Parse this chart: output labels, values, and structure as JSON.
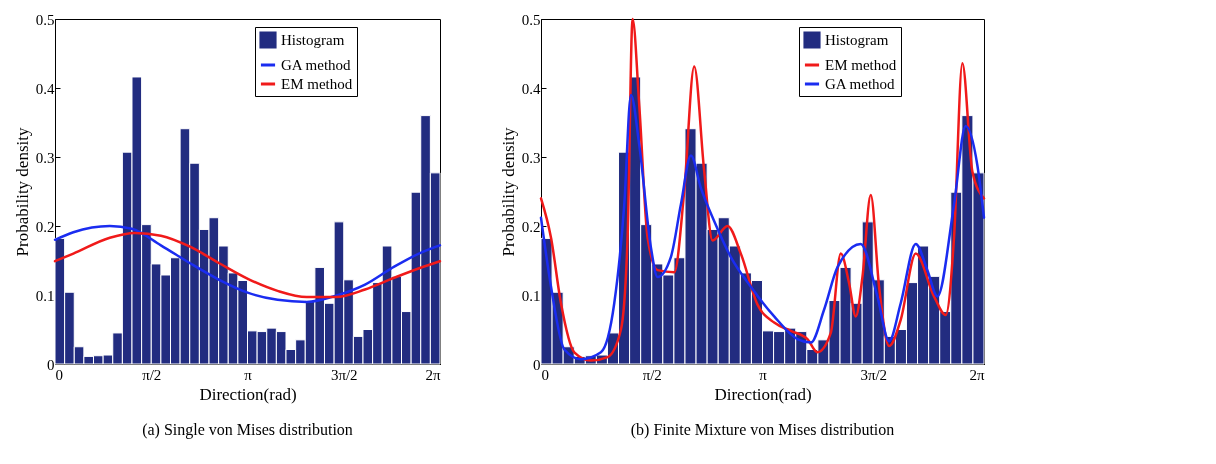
{
  "chart_data": [
    {
      "type": "histogram",
      "xlabel": "Direction(rad)",
      "ylabel": "Probability density",
      "annotations": [
        "(a) Single von Mises distribution"
      ],
      "xlim": [
        0,
        6.2832
      ],
      "ylim": [
        0,
        0.5
      ],
      "xticks": [
        {
          "value": 0,
          "label": "0"
        },
        {
          "value": 1.5708,
          "label": "π/2"
        },
        {
          "value": 3.1416,
          "label": "π"
        },
        {
          "value": 4.7124,
          "label": "3π/2"
        },
        {
          "value": 6.2832,
          "label": "2π"
        }
      ],
      "yticks": [
        0,
        0.1,
        0.2,
        0.3,
        0.4,
        0.5
      ],
      "legend": "top right",
      "bins": [
        0,
        0.1571,
        0.3142,
        0.4712,
        0.6283,
        0.7854,
        0.9425,
        1.0996,
        1.2566,
        1.4137,
        1.5708,
        1.7279,
        1.885,
        2.042,
        2.1991,
        2.3562,
        2.5133,
        2.6704,
        2.8274,
        2.9845,
        3.1416,
        3.2987,
        3.4558,
        3.6128,
        3.7699,
        3.927,
        4.0841,
        4.2412,
        4.3982,
        4.5553,
        4.7124,
        4.8695,
        5.0265,
        5.1836,
        5.3407,
        5.4978,
        5.6549,
        5.8119,
        5.969,
        6.1261,
        6.2832
      ],
      "series": [
        {
          "name": "Histogram",
          "type": "histogram",
          "color": "#222c80",
          "values": [
            0.182,
            0.104,
            0.025,
            0.011,
            0.012,
            0.013,
            0.045,
            0.307,
            0.416,
            0.202,
            0.145,
            0.129,
            0.154,
            0.341,
            0.291,
            0.195,
            0.212,
            0.171,
            0.132,
            0.121,
            0.048,
            0.047,
            0.052,
            0.047,
            0.021,
            0.035,
            0.092,
            0.14,
            0.088,
            0.206,
            0.122,
            0.04,
            0.05,
            0.118,
            0.171,
            0.127,
            0.076,
            0.249,
            0.36,
            0.277
          ]
        },
        {
          "name": "GA method",
          "type": "line",
          "color": "#1a2cf0",
          "x": [
            0,
            0.3,
            0.895,
            1.252,
            1.728,
            2.204,
            2.68,
            3.156,
            3.632,
            4.108,
            4.584,
            5.06,
            5.536,
            6.012,
            6.283
          ],
          "values": [
            0.18,
            0.191,
            0.2,
            0.196,
            0.172,
            0.146,
            0.122,
            0.103,
            0.093,
            0.09,
            0.099,
            0.115,
            0.141,
            0.163,
            0.172
          ]
        },
        {
          "name": "EM method",
          "type": "line",
          "color": "#f01a1a",
          "x": [
            0,
            0.3,
            0.895,
            1.3,
            1.728,
            2.204,
            2.68,
            3.156,
            3.632,
            4.108,
            4.584,
            5.06,
            5.536,
            6.012,
            6.283
          ],
          "values": [
            0.149,
            0.16,
            0.183,
            0.19,
            0.186,
            0.17,
            0.146,
            0.123,
            0.106,
            0.097,
            0.097,
            0.108,
            0.125,
            0.141,
            0.149
          ]
        }
      ]
    },
    {
      "type": "histogram",
      "xlabel": "Direction(rad)",
      "ylabel": "Probability density",
      "annotations": [
        "(b) Finite Mixture von Mises distribution"
      ],
      "xlim": [
        0,
        6.2832
      ],
      "ylim": [
        0,
        0.5
      ],
      "xticks": [
        {
          "value": 0,
          "label": "0"
        },
        {
          "value": 1.5708,
          "label": "π/2"
        },
        {
          "value": 3.1416,
          "label": "π"
        },
        {
          "value": 4.7124,
          "label": "3π/2"
        },
        {
          "value": 6.2832,
          "label": "2π"
        }
      ],
      "yticks": [
        0,
        0.1,
        0.2,
        0.3,
        0.4,
        0.5
      ],
      "legend": "top right",
      "bins": [
        0,
        0.1571,
        0.3142,
        0.4712,
        0.6283,
        0.7854,
        0.9425,
        1.0996,
        1.2566,
        1.4137,
        1.5708,
        1.7279,
        1.885,
        2.042,
        2.1991,
        2.3562,
        2.5133,
        2.6704,
        2.8274,
        2.9845,
        3.1416,
        3.2987,
        3.4558,
        3.6128,
        3.7699,
        3.927,
        4.0841,
        4.2412,
        4.3982,
        4.5553,
        4.7124,
        4.8695,
        5.0265,
        5.1836,
        5.3407,
        5.4978,
        5.6549,
        5.8119,
        5.969,
        6.1261,
        6.2832
      ],
      "series": [
        {
          "name": "Histogram",
          "type": "histogram",
          "color": "#222c80",
          "values": [
            0.182,
            0.104,
            0.025,
            0.011,
            0.012,
            0.013,
            0.045,
            0.307,
            0.416,
            0.202,
            0.145,
            0.129,
            0.154,
            0.341,
            0.291,
            0.195,
            0.212,
            0.171,
            0.132,
            0.121,
            0.048,
            0.047,
            0.052,
            0.047,
            0.021,
            0.035,
            0.092,
            0.14,
            0.088,
            0.206,
            0.122,
            0.04,
            0.05,
            0.118,
            0.171,
            0.127,
            0.076,
            0.249,
            0.36,
            0.277
          ]
        },
        {
          "name": "EM method",
          "type": "line",
          "color": "#f01a1a",
          "x": [
            0,
            0.142,
            0.283,
            0.472,
            0.709,
            0.945,
            1.134,
            1.228,
            1.299,
            1.394,
            1.512,
            1.653,
            1.89,
            2.031,
            2.173,
            2.315,
            2.433,
            2.646,
            2.834,
            3.071,
            3.307,
            3.543,
            3.779,
            3.921,
            4.11,
            4.252,
            4.37,
            4.464,
            4.559,
            4.677,
            4.795,
            4.937,
            5.102,
            5.315,
            5.574,
            5.74,
            5.858,
            5.976,
            6.118,
            6.283
          ],
          "values": [
            0.24,
            0.183,
            0.088,
            0.017,
            0.005,
            0.01,
            0.05,
            0.183,
            0.5,
            0.374,
            0.183,
            0.136,
            0.133,
            0.25,
            0.431,
            0.279,
            0.179,
            0.2,
            0.16,
            0.086,
            0.06,
            0.048,
            0.036,
            0.017,
            0.045,
            0.16,
            0.117,
            0.069,
            0.126,
            0.245,
            0.112,
            0.026,
            0.064,
            0.16,
            0.098,
            0.071,
            0.183,
            0.436,
            0.279,
            0.24
          ]
        },
        {
          "name": "GA method",
          "type": "line",
          "color": "#1a2cf0",
          "x": [
            0,
            0.142,
            0.331,
            0.567,
            0.85,
            1.039,
            1.181,
            1.276,
            1.394,
            1.559,
            1.653,
            1.842,
            1.984,
            2.126,
            2.268,
            2.457,
            2.693,
            2.976,
            3.307,
            3.638,
            3.827,
            4.016,
            4.204,
            4.535,
            4.771,
            4.937,
            5.102,
            5.315,
            5.48,
            5.622,
            5.858,
            6.023,
            6.189,
            6.283
          ],
          "values": [
            0.212,
            0.112,
            0.021,
            0.007,
            0.017,
            0.088,
            0.231,
            0.39,
            0.317,
            0.169,
            0.126,
            0.155,
            0.231,
            0.302,
            0.255,
            0.207,
            0.155,
            0.112,
            0.069,
            0.036,
            0.031,
            0.079,
            0.14,
            0.174,
            0.098,
            0.033,
            0.088,
            0.174,
            0.136,
            0.098,
            0.231,
            0.345,
            0.288,
            0.212
          ]
        }
      ]
    }
  ]
}
